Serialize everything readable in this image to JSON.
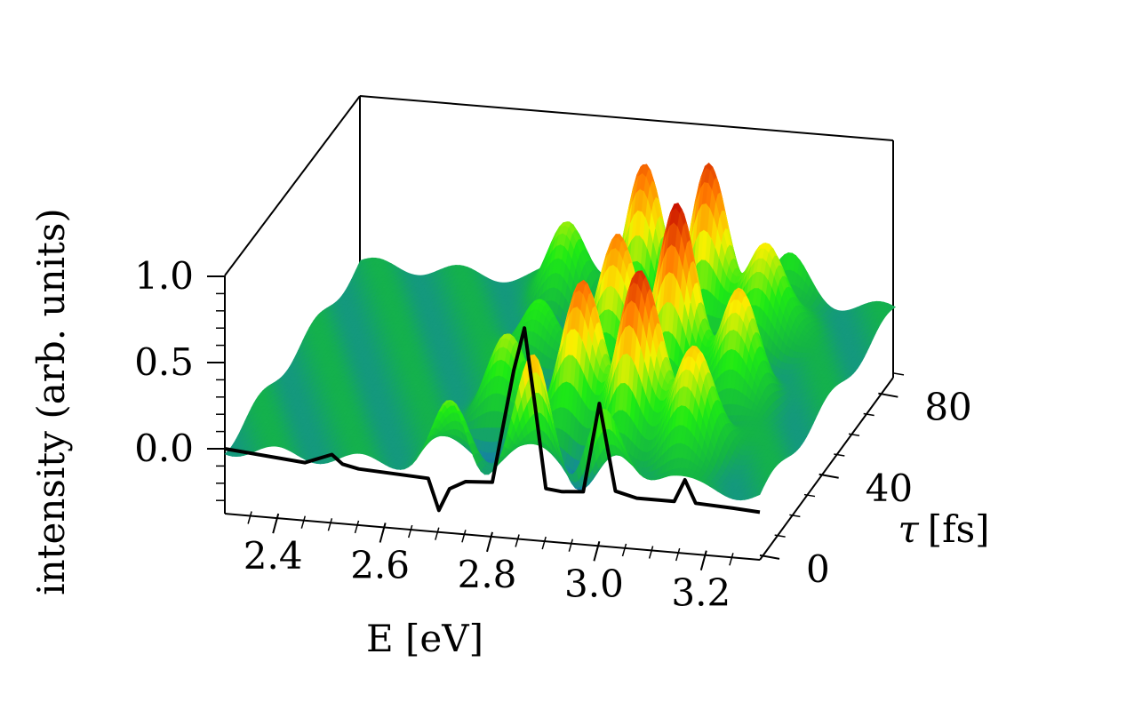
{
  "chart_data": {
    "type": "surface3d",
    "title": "",
    "xlabel": "E [eV]",
    "ylabel": "τ [fs]",
    "ylabel_symbol": "τ",
    "ylabel_unit": "[fs]",
    "zlabel": "intensity (arb. units)",
    "x_ticks": [
      "2.4",
      "2.6",
      "2.8",
      "3.0",
      "3.2"
    ],
    "x_tick_values": [
      2.4,
      2.6,
      2.8,
      3.0,
      3.2
    ],
    "y_ticks": [
      "0",
      "40",
      "80"
    ],
    "y_tick_values": [
      0,
      40,
      80
    ],
    "z_ticks": [
      "0.0",
      "0.5",
      "1.0"
    ],
    "z_tick_values": [
      0.0,
      0.5,
      1.0
    ],
    "xlim": [
      2.3,
      3.3
    ],
    "ylim": [
      0,
      90
    ],
    "zlim": [
      -0.35,
      1.0
    ],
    "colormap": "hsv-like (blue → green → yellow → red)",
    "colors": {
      "low": "#2a0cff",
      "mid": "#11b84a",
      "high": "#e01500",
      "line": "#000000"
    },
    "surface_peaks": [
      {
        "E": 2.73,
        "amplitude": 0.45
      },
      {
        "E": 2.88,
        "amplitude": 0.85
      },
      {
        "E": 3.0,
        "amplitude": 1.05
      },
      {
        "E": 3.12,
        "amplitude": 0.6
      }
    ],
    "line_series": {
      "tau": 0,
      "x": [
        2.3,
        2.45,
        2.5,
        2.52,
        2.55,
        2.68,
        2.7,
        2.72,
        2.75,
        2.8,
        2.84,
        2.86,
        2.88,
        2.9,
        2.93,
        2.97,
        3.0,
        3.03,
        3.07,
        3.14,
        3.16,
        3.18,
        3.25,
        3.3
      ],
      "y": [
        0.0,
        -0.04,
        0.02,
        -0.03,
        -0.05,
        -0.07,
        -0.25,
        -0.12,
        -0.07,
        -0.06,
        0.6,
        0.85,
        0.4,
        -0.07,
        -0.08,
        -0.07,
        0.45,
        -0.05,
        -0.08,
        -0.08,
        0.05,
        -0.08,
        -0.09,
        -0.1
      ]
    }
  }
}
